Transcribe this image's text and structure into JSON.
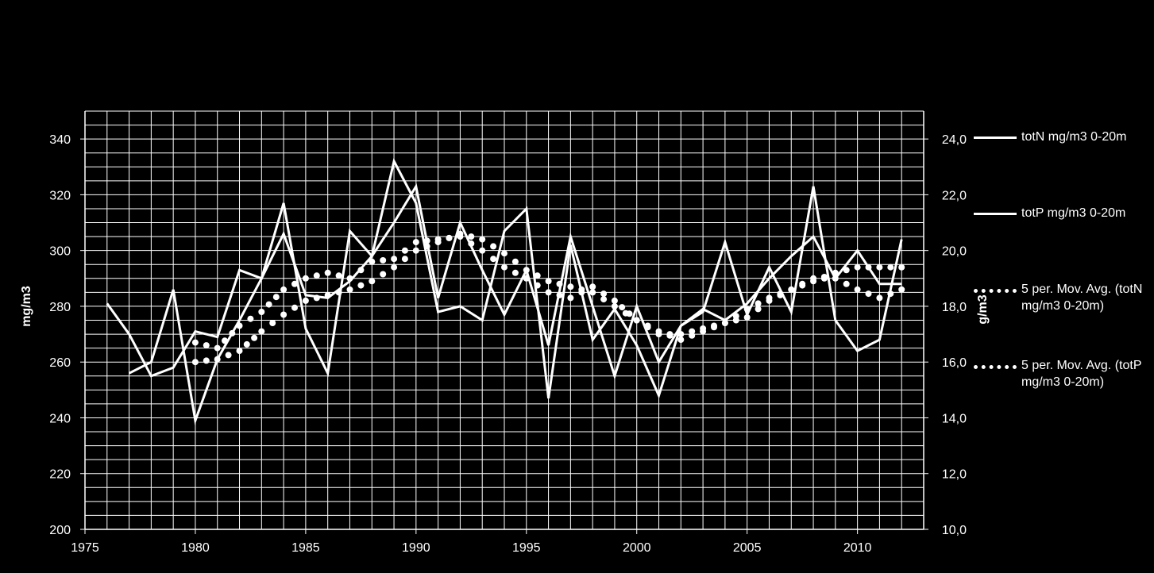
{
  "chart_data": {
    "type": "line",
    "title": "",
    "xlabel": "",
    "ylabel_left": "mg/m3",
    "ylabel_right": "g/m3",
    "xlim": [
      1975,
      2013
    ],
    "x_ticks": [
      "1975",
      "1980",
      "1985",
      "1990",
      "1995",
      "2000",
      "2005",
      "2010"
    ],
    "ylim_left": [
      200,
      350
    ],
    "y_ticks_left": [
      "200",
      "220",
      "240",
      "260",
      "280",
      "300",
      "320",
      "340"
    ],
    "ylim_right": [
      10,
      25
    ],
    "y_ticks_right": [
      "10,0",
      "12,0",
      "14,0",
      "16,0",
      "18,0",
      "20,0",
      "22,0",
      "24,0"
    ],
    "grid": true,
    "legend_position": "right",
    "years": [
      1976,
      1977,
      1978,
      1979,
      1980,
      1981,
      1982,
      1983,
      1984,
      1985,
      1986,
      1987,
      1988,
      1989,
      1990,
      1991,
      1992,
      1993,
      1994,
      1995,
      1996,
      1997,
      1998,
      1999,
      2000,
      2001,
      2002,
      2003,
      2004,
      2005,
      2006,
      2007,
      2008,
      2009,
      2010,
      2011,
      2012
    ],
    "series": [
      {
        "name": "totN mg/m3 0-20m",
        "axis": "left",
        "style": "line",
        "values": [
          281,
          270,
          255,
          258,
          271,
          269,
          293,
          290,
          317,
          272,
          256,
          307,
          298,
          332,
          317,
          278,
          280,
          275,
          307,
          315,
          247,
          302,
          268,
          279,
          266,
          248,
          273,
          278,
          303,
          277,
          294,
          278,
          323,
          275,
          264,
          268,
          304
        ]
      },
      {
        "name": "totP mg/m3 0-20m",
        "axis": "right",
        "style": "line",
        "values": [
          null,
          15.6,
          16.0,
          18.6,
          13.9,
          16.1,
          17.5,
          19.0,
          20.6,
          18.4,
          18.3,
          18.9,
          19.8,
          21.0,
          22.3,
          18.3,
          21.0,
          19.3,
          17.7,
          19.3,
          16.6,
          20.5,
          18.0,
          15.5,
          18.0,
          16.0,
          17.3,
          17.9,
          17.5,
          18.1,
          19.0,
          19.8,
          20.5,
          19.0,
          20.0,
          18.8,
          18.8
        ]
      },
      {
        "name": "5 per. Mov. Avg. (totN mg/m3 0-20m)",
        "axis": "left",
        "style": "dots",
        "values": [
          null,
          null,
          null,
          null,
          267,
          265,
          273,
          278,
          286,
          290,
          292,
          290,
          296,
          297,
          303,
          304,
          305,
          300,
          294,
          290,
          285,
          283,
          287,
          282,
          275,
          270,
          270,
          272,
          274,
          276,
          282,
          286,
          290,
          290,
          286,
          283,
          286
        ]
      },
      {
        "name": "5 per. Mov. Avg. (totP mg/m3 0-20m)",
        "axis": "right",
        "style": "dots",
        "values": [
          null,
          null,
          null,
          null,
          16.0,
          16.1,
          16.4,
          17.1,
          17.7,
          18.2,
          18.4,
          18.6,
          18.9,
          19.4,
          20.0,
          20.3,
          20.6,
          20.4,
          19.9,
          19.3,
          18.9,
          18.7,
          18.5,
          18.0,
          17.5,
          17.1,
          16.8,
          17.1,
          17.4,
          17.9,
          18.3,
          18.6,
          18.9,
          19.2,
          19.4,
          19.4,
          19.4
        ]
      }
    ]
  }
}
